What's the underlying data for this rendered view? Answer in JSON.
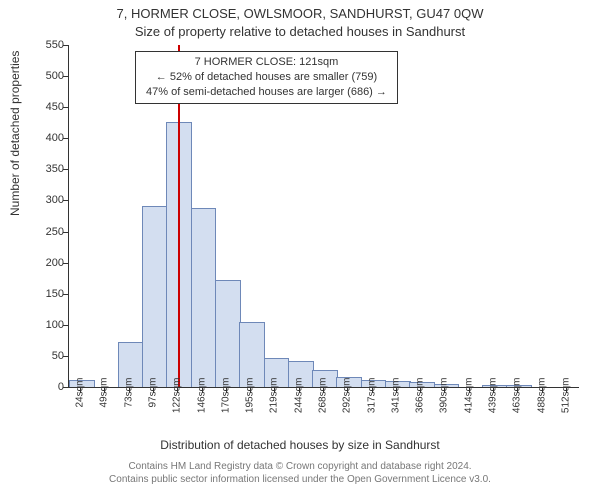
{
  "title_line1": "7, HORMER CLOSE, OWLSMOOR, SANDHURST, GU47 0QW",
  "title_line2": "Size of property relative to detached houses in Sandhurst",
  "ylabel": "Number of detached properties",
  "xlabel": "Distribution of detached houses by size in Sandhurst",
  "footer_line1": "Contains HM Land Registry data © Crown copyright and database right 2024.",
  "footer_line2": "Contains public sector information licensed under the Open Government Licence v3.0.",
  "annotation": {
    "l1": "7 HORMER CLOSE: 121sqm",
    "l2": "← 52% of detached houses are smaller (759)",
    "l3": "47% of semi-detached houses are larger (686) →"
  },
  "chart": {
    "type": "histogram",
    "ylim": [
      0,
      550
    ],
    "yticks": [
      0,
      50,
      100,
      150,
      200,
      250,
      300,
      350,
      400,
      450,
      500,
      550
    ],
    "xticks": [
      "24sqm",
      "49sqm",
      "73sqm",
      "97sqm",
      "122sqm",
      "146sqm",
      "170sqm",
      "195sqm",
      "219sqm",
      "244sqm",
      "268sqm",
      "292sqm",
      "317sqm",
      "341sqm",
      "366sqm",
      "390sqm",
      "414sqm",
      "439sqm",
      "463sqm",
      "488sqm",
      "512sqm"
    ],
    "values": [
      10,
      0,
      70,
      290,
      425,
      287,
      170,
      103,
      45,
      40,
      25,
      15,
      10,
      8,
      6,
      4,
      0,
      2,
      2,
      0,
      0
    ],
    "bar_fill": "#d3def0",
    "bar_stroke": "#6e88b8",
    "ref_line_x": 121,
    "ref_line_color": "#cc0000",
    "x_range": [
      12,
      524
    ],
    "background_color": "#ffffff",
    "tick_fontsize": 11,
    "label_fontsize": 12,
    "title_fontsize": 13
  }
}
